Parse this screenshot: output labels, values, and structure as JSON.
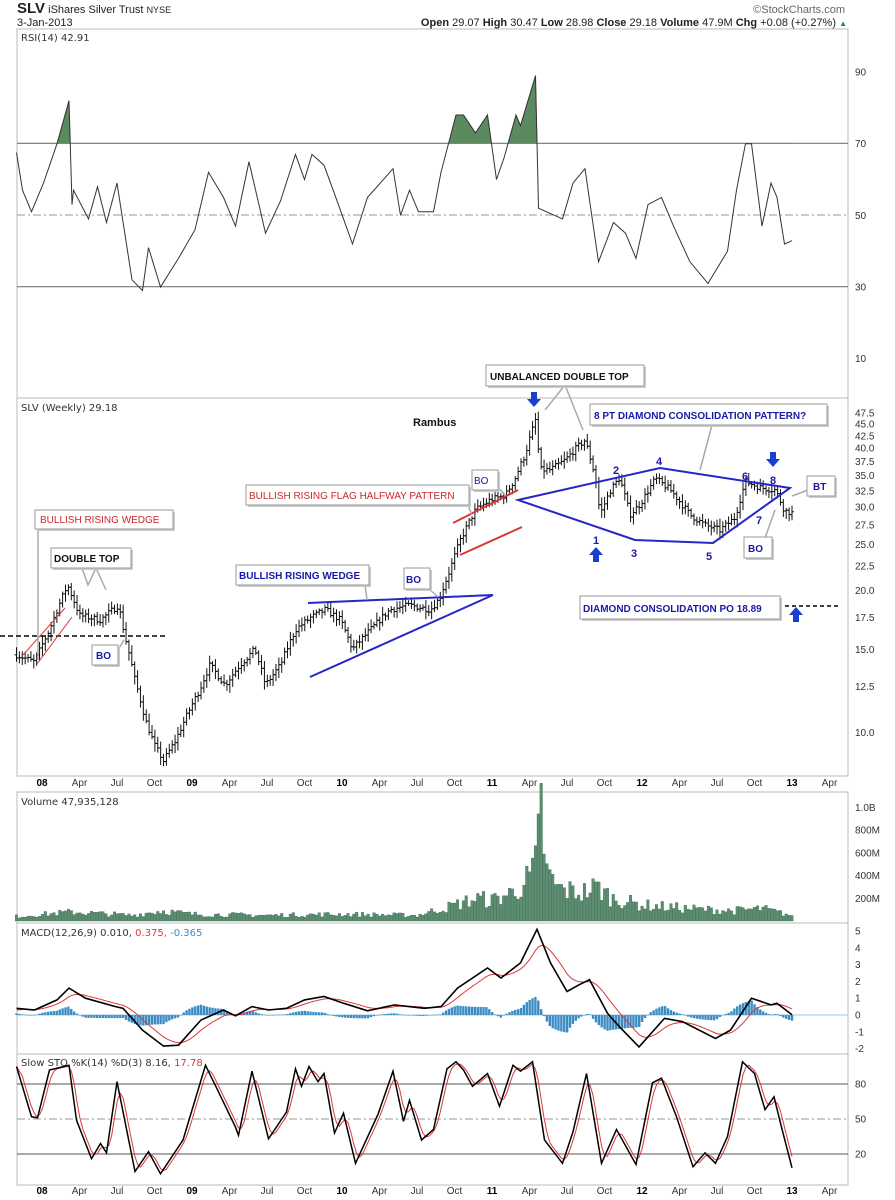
{
  "header": {
    "symbol": "SLV",
    "name": "iShares Silver Trust",
    "exchange": "NYSE",
    "date": "3-Jan-2013",
    "copyright": "©StockCharts.com",
    "open_label": "Open",
    "open": "29.07",
    "high_label": "High",
    "high": "30.47",
    "low_label": "Low",
    "low": "28.98",
    "close_label": "Close",
    "close": "29.18",
    "volume_label": "Volume",
    "volume": "47.9M",
    "chg_label": "Chg",
    "chg": "+0.08 (+0.27%)",
    "up_arrow": "▲"
  },
  "panels": {
    "rsi_label": "RSI(14) 42.91",
    "price_label": "SLV (Weekly) 29.18",
    "volume_label": "Volume 47,935,128",
    "macd_label_main": "MACD(12,26,9) 0.010,",
    "macd_label_signal": "0.375,",
    "macd_label_hist": "-0.365",
    "sto_label_main": "Slow STO %K(14) %D(3) 8.16,",
    "sto_label_d": "17.78"
  },
  "annotations": {
    "author": "Rambus",
    "wedge_2008": "BULLISH RISING WEDGE",
    "double_top": "DOUBLE TOP",
    "bo_2008": "BO",
    "wedge_2010": "BULLISH RISING WEDGE",
    "bo_2010": "BO",
    "flag": "BULLISH RISING FLAG HALFWAY PATTERN",
    "bo_flag": "BO",
    "unbalanced": "UNBALANCED DOUBLE TOP",
    "diamond": "8 PT DIAMOND CONSOLIDATION PATTERN?",
    "bt": "BT",
    "bo_diamond": "BO",
    "po": "DIAMOND CONSOLIDATION PO 18.89",
    "points": [
      "1",
      "2",
      "3",
      "4",
      "5",
      "6",
      "7",
      "8"
    ]
  },
  "colors": {
    "price_bar": "#111111",
    "rsi_fill": "#5b8a5e",
    "volume": "#5c8f72",
    "macd": "#000000",
    "signal": "#d9383a",
    "histogram": "#3c8cc4",
    "sto_k": "#000000",
    "sto_d": "#d9383a",
    "annotation_blue": "#1a1aa6",
    "annotation_red": "#c8282d"
  },
  "chart_data": {
    "type": "line",
    "title": "SLV iShares Silver Trust (Weekly)",
    "x_unit": "year",
    "xlim": [
      2007.83,
      2013.4
    ],
    "date_ticks": [
      {
        "label": "08",
        "t": 2008.0,
        "year": true
      },
      {
        "label": "Apr",
        "t": 2008.25
      },
      {
        "label": "Jul",
        "t": 2008.5
      },
      {
        "label": "Oct",
        "t": 2008.75
      },
      {
        "label": "09",
        "t": 2009.0,
        "year": true
      },
      {
        "label": "Apr",
        "t": 2009.25
      },
      {
        "label": "Jul",
        "t": 2009.5
      },
      {
        "label": "Oct",
        "t": 2009.75
      },
      {
        "label": "10",
        "t": 2010.0,
        "year": true
      },
      {
        "label": "Apr",
        "t": 2010.25
      },
      {
        "label": "Jul",
        "t": 2010.5
      },
      {
        "label": "Oct",
        "t": 2010.75
      },
      {
        "label": "11",
        "t": 2011.0,
        "year": true
      },
      {
        "label": "Apr",
        "t": 2011.25
      },
      {
        "label": "Jul",
        "t": 2011.5
      },
      {
        "label": "Oct",
        "t": 2011.75
      },
      {
        "label": "12",
        "t": 2012.0,
        "year": true
      },
      {
        "label": "Apr",
        "t": 2012.25
      },
      {
        "label": "Jul",
        "t": 2012.5
      },
      {
        "label": "Oct",
        "t": 2012.75
      },
      {
        "label": "13",
        "t": 2013.0,
        "year": true
      },
      {
        "label": "Apr",
        "t": 2013.25
      }
    ],
    "price": {
      "scale": "log",
      "ylim": [
        8.3,
        50
      ],
      "ticks": [
        "47.5",
        "45.0",
        "42.5",
        "40.0",
        "37.5",
        "35.0",
        "32.5",
        "30.0",
        "27.5",
        "25.0",
        "22.5",
        "20.0",
        "17.5",
        "15.0",
        "12.5",
        "10.0"
      ],
      "close_points": [
        [
          2007.83,
          14.6
        ],
        [
          2007.95,
          14.1
        ],
        [
          2008.05,
          16.5
        ],
        [
          2008.17,
          20.5
        ],
        [
          2008.25,
          17.7
        ],
        [
          2008.39,
          17.3
        ],
        [
          2008.51,
          18.6
        ],
        [
          2008.55,
          16.1
        ],
        [
          2008.62,
          12.9
        ],
        [
          2008.69,
          10.6
        ],
        [
          2008.75,
          9.4
        ],
        [
          2008.81,
          8.7
        ],
        [
          2008.89,
          9.6
        ],
        [
          2008.95,
          10.6
        ],
        [
          2009.05,
          12.3
        ],
        [
          2009.12,
          13.9
        ],
        [
          2009.22,
          12.6
        ],
        [
          2009.32,
          13.9
        ],
        [
          2009.42,
          15.0
        ],
        [
          2009.49,
          12.6
        ],
        [
          2009.59,
          13.9
        ],
        [
          2009.69,
          16.5
        ],
        [
          2009.79,
          17.5
        ],
        [
          2009.89,
          18.2
        ],
        [
          2009.99,
          17.3
        ],
        [
          2010.07,
          15.0
        ],
        [
          2010.19,
          16.5
        ],
        [
          2010.32,
          18.2
        ],
        [
          2010.45,
          18.6
        ],
        [
          2010.59,
          18.2
        ],
        [
          2010.65,
          19.2
        ],
        [
          2010.72,
          22.1
        ],
        [
          2010.79,
          25.6
        ],
        [
          2010.89,
          29.6
        ],
        [
          2010.99,
          31.1
        ],
        [
          2011.09,
          31.8
        ],
        [
          2011.15,
          34.3
        ],
        [
          2011.22,
          38.7
        ],
        [
          2011.29,
          45.9
        ],
        [
          2011.32,
          36.0
        ],
        [
          2011.39,
          36.0
        ],
        [
          2011.49,
          37.8
        ],
        [
          2011.55,
          39.7
        ],
        [
          2011.62,
          41.6
        ],
        [
          2011.69,
          34.6
        ],
        [
          2011.72,
          28.9
        ],
        [
          2011.79,
          32.6
        ],
        [
          2011.85,
          34.6
        ],
        [
          2011.92,
          28.9
        ],
        [
          2011.99,
          30.5
        ],
        [
          2012.09,
          34.5
        ],
        [
          2012.19,
          32.6
        ],
        [
          2012.32,
          28.9
        ],
        [
          2012.42,
          27.5
        ],
        [
          2012.52,
          26.8
        ],
        [
          2012.62,
          28.5
        ],
        [
          2012.69,
          34.0
        ],
        [
          2012.79,
          33.0
        ],
        [
          2012.89,
          32.6
        ],
        [
          2012.95,
          29.5
        ],
        [
          2013.0,
          29.18
        ]
      ]
    },
    "rsi": {
      "ylim": [
        0,
        100
      ],
      "ticks": [
        "90",
        "70",
        "50",
        "30",
        "10"
      ],
      "overbought": 70,
      "oversold": 30,
      "mid": 50,
      "points": [
        [
          2007.83,
          67.5
        ],
        [
          2007.87,
          57
        ],
        [
          2007.93,
          51
        ],
        [
          2008.01,
          59
        ],
        [
          2008.1,
          70
        ],
        [
          2008.18,
          82
        ],
        [
          2008.2,
          53
        ],
        [
          2008.21,
          57
        ],
        [
          2008.31,
          49
        ],
        [
          2008.37,
          58
        ],
        [
          2008.43,
          48
        ],
        [
          2008.5,
          59
        ],
        [
          2008.6,
          32
        ],
        [
          2008.67,
          29
        ],
        [
          2008.71,
          41
        ],
        [
          2008.79,
          30
        ],
        [
          2008.91,
          38
        ],
        [
          2009.02,
          46
        ],
        [
          2009.11,
          62
        ],
        [
          2009.21,
          55
        ],
        [
          2009.29,
          47
        ],
        [
          2009.38,
          65
        ],
        [
          2009.49,
          45
        ],
        [
          2009.59,
          54
        ],
        [
          2009.69,
          67
        ],
        [
          2009.75,
          60
        ],
        [
          2009.8,
          67
        ],
        [
          2009.88,
          64
        ],
        [
          2009.95,
          56
        ],
        [
          2010.07,
          42
        ],
        [
          2010.17,
          55
        ],
        [
          2010.34,
          63
        ],
        [
          2010.39,
          50
        ],
        [
          2010.45,
          57
        ],
        [
          2010.51,
          51
        ],
        [
          2010.61,
          51
        ],
        [
          2010.66,
          62
        ],
        [
          2010.76,
          78
        ],
        [
          2010.81,
          78
        ],
        [
          2010.89,
          73
        ],
        [
          2010.97,
          78
        ],
        [
          2011.03,
          60
        ],
        [
          2011.08,
          66
        ],
        [
          2011.16,
          78
        ],
        [
          2011.19,
          75
        ],
        [
          2011.29,
          89
        ],
        [
          2011.31,
          52
        ],
        [
          2011.47,
          49
        ],
        [
          2011.54,
          59
        ],
        [
          2011.62,
          63
        ],
        [
          2011.71,
          37
        ],
        [
          2011.81,
          48
        ],
        [
          2011.89,
          45
        ],
        [
          2011.96,
          38
        ],
        [
          2012.04,
          53
        ],
        [
          2012.13,
          55
        ],
        [
          2012.21,
          47
        ],
        [
          2012.32,
          37
        ],
        [
          2012.44,
          31
        ],
        [
          2012.57,
          40
        ],
        [
          2012.63,
          57
        ],
        [
          2012.69,
          70
        ],
        [
          2012.73,
          70
        ],
        [
          2012.8,
          47
        ],
        [
          2012.86,
          59
        ],
        [
          2012.9,
          55
        ],
        [
          2012.95,
          42
        ],
        [
          2013.0,
          42.91
        ]
      ]
    },
    "volume": {
      "unit": "millions",
      "ticks": [
        "1.0B",
        "800M",
        "600M",
        "400M",
        "200M"
      ],
      "points": [
        [
          2007.83,
          40
        ],
        [
          2008.2,
          80
        ],
        [
          2008.6,
          50
        ],
        [
          2008.8,
          90
        ],
        [
          2009.0,
          60
        ],
        [
          2009.5,
          50
        ],
        [
          2010.0,
          60
        ],
        [
          2010.5,
          50
        ],
        [
          2010.7,
          120
        ],
        [
          2010.9,
          200
        ],
        [
          2011.0,
          180
        ],
        [
          2011.15,
          260
        ],
        [
          2011.25,
          380
        ],
        [
          2011.29,
          500
        ],
        [
          2011.31,
          750
        ],
        [
          2011.33,
          1050
        ],
        [
          2011.35,
          620
        ],
        [
          2011.37,
          400
        ],
        [
          2011.45,
          280
        ],
        [
          2011.6,
          250
        ],
        [
          2011.7,
          300
        ],
        [
          2011.8,
          200
        ],
        [
          2012.0,
          140
        ],
        [
          2012.3,
          110
        ],
        [
          2012.6,
          90
        ],
        [
          2012.8,
          110
        ],
        [
          2013.0,
          48
        ]
      ]
    },
    "macd": {
      "ticks": [
        "5",
        "4",
        "3",
        "2",
        "1",
        "0",
        "-1",
        "-2"
      ],
      "points": [
        [
          2007.83,
          0.4
        ],
        [
          2007.95,
          0.3
        ],
        [
          2008.1,
          0.9
        ],
        [
          2008.18,
          1.6
        ],
        [
          2008.29,
          1.0
        ],
        [
          2008.49,
          0.5
        ],
        [
          2008.54,
          0.4
        ],
        [
          2008.67,
          -0.9
        ],
        [
          2008.81,
          -1.85
        ],
        [
          2008.91,
          -1.8
        ],
        [
          2009.06,
          -0.3
        ],
        [
          2009.21,
          0.3
        ],
        [
          2009.29,
          -0.05
        ],
        [
          2009.4,
          0.5
        ],
        [
          2009.51,
          0.3
        ],
        [
          2009.63,
          0.4
        ],
        [
          2009.75,
          0.9
        ],
        [
          2009.88,
          1.1
        ],
        [
          2010.01,
          0.7
        ],
        [
          2010.17,
          0.25
        ],
        [
          2010.35,
          0.6
        ],
        [
          2010.55,
          0.4
        ],
        [
          2010.66,
          0.5
        ],
        [
          2010.77,
          1.6
        ],
        [
          2010.97,
          2.8
        ],
        [
          2011.06,
          2.2
        ],
        [
          2011.19,
          3.1
        ],
        [
          2011.3,
          5.1
        ],
        [
          2011.39,
          3.1
        ],
        [
          2011.5,
          1.4
        ],
        [
          2011.58,
          1.8
        ],
        [
          2011.65,
          2.1
        ],
        [
          2011.77,
          0.1
        ],
        [
          2011.85,
          -0.7
        ],
        [
          2011.98,
          -1.9
        ],
        [
          2012.15,
          -0.2
        ],
        [
          2012.27,
          -0.4
        ],
        [
          2012.49,
          -1.4
        ],
        [
          2012.59,
          -0.9
        ],
        [
          2012.73,
          1.0
        ],
        [
          2012.86,
          0.6
        ],
        [
          2012.9,
          0.7
        ],
        [
          2013.0,
          0.01
        ]
      ]
    },
    "stochastic": {
      "ticks": [
        "80",
        "50",
        "20"
      ],
      "k_points": [
        [
          2007.83,
          95
        ],
        [
          2007.93,
          52
        ],
        [
          2007.97,
          51
        ],
        [
          2008.05,
          92
        ],
        [
          2008.18,
          96
        ],
        [
          2008.23,
          49
        ],
        [
          2008.33,
          16
        ],
        [
          2008.39,
          29
        ],
        [
          2008.43,
          21
        ],
        [
          2008.5,
          82
        ],
        [
          2008.62,
          5
        ],
        [
          2008.71,
          22
        ],
        [
          2008.79,
          3
        ],
        [
          2008.94,
          32
        ],
        [
          2009.09,
          96
        ],
        [
          2009.17,
          75
        ],
        [
          2009.29,
          43
        ],
        [
          2009.31,
          36
        ],
        [
          2009.4,
          91
        ],
        [
          2009.51,
          33
        ],
        [
          2009.63,
          56
        ],
        [
          2009.69,
          93
        ],
        [
          2009.73,
          78
        ],
        [
          2009.78,
          95
        ],
        [
          2009.84,
          82
        ],
        [
          2009.88,
          89
        ],
        [
          2009.95,
          38
        ],
        [
          2010.01,
          55
        ],
        [
          2010.09,
          12
        ],
        [
          2010.24,
          54
        ],
        [
          2010.34,
          91
        ],
        [
          2010.41,
          48
        ],
        [
          2010.45,
          66
        ],
        [
          2010.53,
          32
        ],
        [
          2010.61,
          41
        ],
        [
          2010.7,
          93
        ],
        [
          2010.76,
          99
        ],
        [
          2010.81,
          92
        ],
        [
          2010.87,
          78
        ],
        [
          2010.97,
          89
        ],
        [
          2011.05,
          61
        ],
        [
          2011.14,
          96
        ],
        [
          2011.19,
          91
        ],
        [
          2011.27,
          99
        ],
        [
          2011.35,
          32
        ],
        [
          2011.47,
          12
        ],
        [
          2011.54,
          39
        ],
        [
          2011.63,
          89
        ],
        [
          2011.73,
          12
        ],
        [
          2011.83,
          41
        ],
        [
          2011.96,
          11
        ],
        [
          2012.07,
          81
        ],
        [
          2012.13,
          85
        ],
        [
          2012.23,
          52
        ],
        [
          2012.34,
          9
        ],
        [
          2012.42,
          21
        ],
        [
          2012.49,
          12
        ],
        [
          2012.57,
          35
        ],
        [
          2012.67,
          99
        ],
        [
          2012.75,
          89
        ],
        [
          2012.82,
          58
        ],
        [
          2012.88,
          69
        ],
        [
          2012.93,
          43
        ],
        [
          2013.0,
          8.16
        ]
      ]
    }
  }
}
